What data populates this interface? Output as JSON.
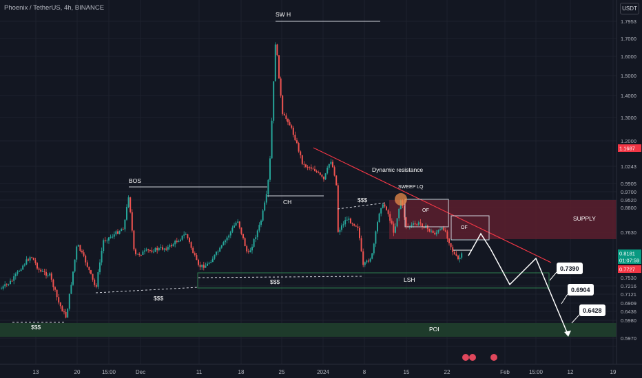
{
  "header": {
    "title": "Phoenix / TetherUS, 4h, BINANCE",
    "currency": "USDT"
  },
  "chart_data": {
    "type": "candlestick",
    "title": "Phoenix / TetherUS, 4h, BINANCE",
    "y_axis": {
      "scale": "log",
      "ticks": [
        "1.7953",
        "1.7000",
        "1.6000",
        "1.5000",
        "1.4000",
        "1.3000",
        "1.2000",
        "1.0243",
        "0.9905",
        "0.9700",
        "0.9520",
        "0.8800",
        "0.7630",
        "0.7530",
        "0.7216",
        "0.7121",
        "0.6909",
        "0.6436",
        "0.5980",
        "0.5970"
      ]
    },
    "x_axis": {
      "ticks": [
        "13",
        "20",
        "15:00",
        "Dec",
        "11",
        "18",
        "25",
        "2024",
        "8",
        "15",
        "22",
        "Feb",
        "15:00",
        "12",
        "19"
      ]
    },
    "price_tags": [
      {
        "label": "1.1687",
        "color": "#f23645"
      },
      {
        "label": "0.8181",
        "color": "#089981"
      },
      {
        "label": "01:07:59",
        "color": "#089981"
      },
      {
        "label": "0.7727",
        "color": "#f23645"
      }
    ],
    "annotations": {
      "swh": "SW H",
      "bos": "BOS",
      "ch": "CH",
      "dynamic_resistance": "Dynamic resistance",
      "sweep_lq": "SWEEP LQ",
      "of1": "OF",
      "of2": "OF",
      "supply": "SUPPLY",
      "lsh": "LSH",
      "poi": "POI",
      "liq1": "$$$",
      "liq2": "$$$",
      "liq3": "$$$",
      "liq4": "$$$",
      "target1": "0.7390",
      "target2": "0.6904",
      "target3": "0.6428"
    },
    "key_levels": {
      "swing_high": 1.7953,
      "bos": 1.03,
      "ch": 0.975,
      "supply_zone": [
        0.875,
        0.935
      ],
      "lsh": 0.7727,
      "poi_zone": [
        0.6436,
        0.6909
      ]
    },
    "colors": {
      "up": "#26a69a",
      "down": "#ef5350",
      "background": "#131722",
      "supply": "#5c1f2e",
      "poi": "#1f3d2c"
    }
  }
}
